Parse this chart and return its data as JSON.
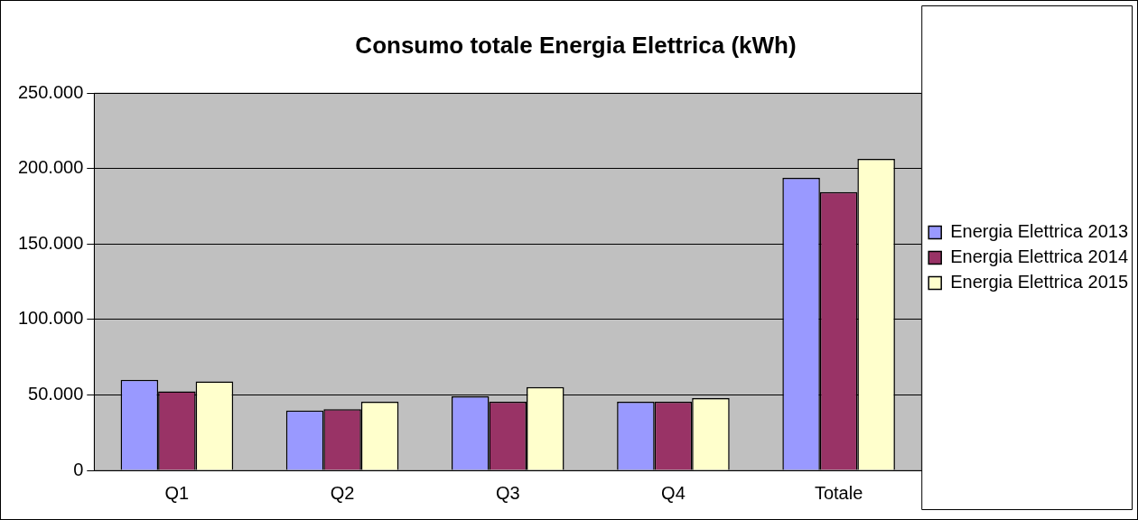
{
  "chart_data": {
    "type": "bar",
    "title": "Consumo totale Energia Elettrica (kWh)",
    "categories": [
      "Q1",
      "Q2",
      "Q3",
      "Q4",
      "Totale"
    ],
    "series": [
      {
        "name": "Energia Elettrica 2013",
        "color": "#9999ff",
        "values": [
          60000,
          39600,
          49000,
          45500,
          193900
        ]
      },
      {
        "name": "Energia Elettrica 2014",
        "color": "#993366",
        "values": [
          52400,
          40600,
          45500,
          45500,
          184500
        ]
      },
      {
        "name": "Energia Elettrica 2015",
        "color": "#ffffcc",
        "values": [
          59000,
          45500,
          55200,
          47900,
          206500
        ]
      }
    ],
    "ylim": [
      0,
      250000
    ],
    "yticks": [
      {
        "value": 0,
        "label": "0"
      },
      {
        "value": 50000,
        "label": "50.000"
      },
      {
        "value": 100000,
        "label": "100.000"
      },
      {
        "value": 150000,
        "label": "150.000"
      },
      {
        "value": 200000,
        "label": "200.000"
      },
      {
        "value": 250000,
        "label": "250.000"
      }
    ],
    "grid": "y",
    "legend": "right"
  }
}
